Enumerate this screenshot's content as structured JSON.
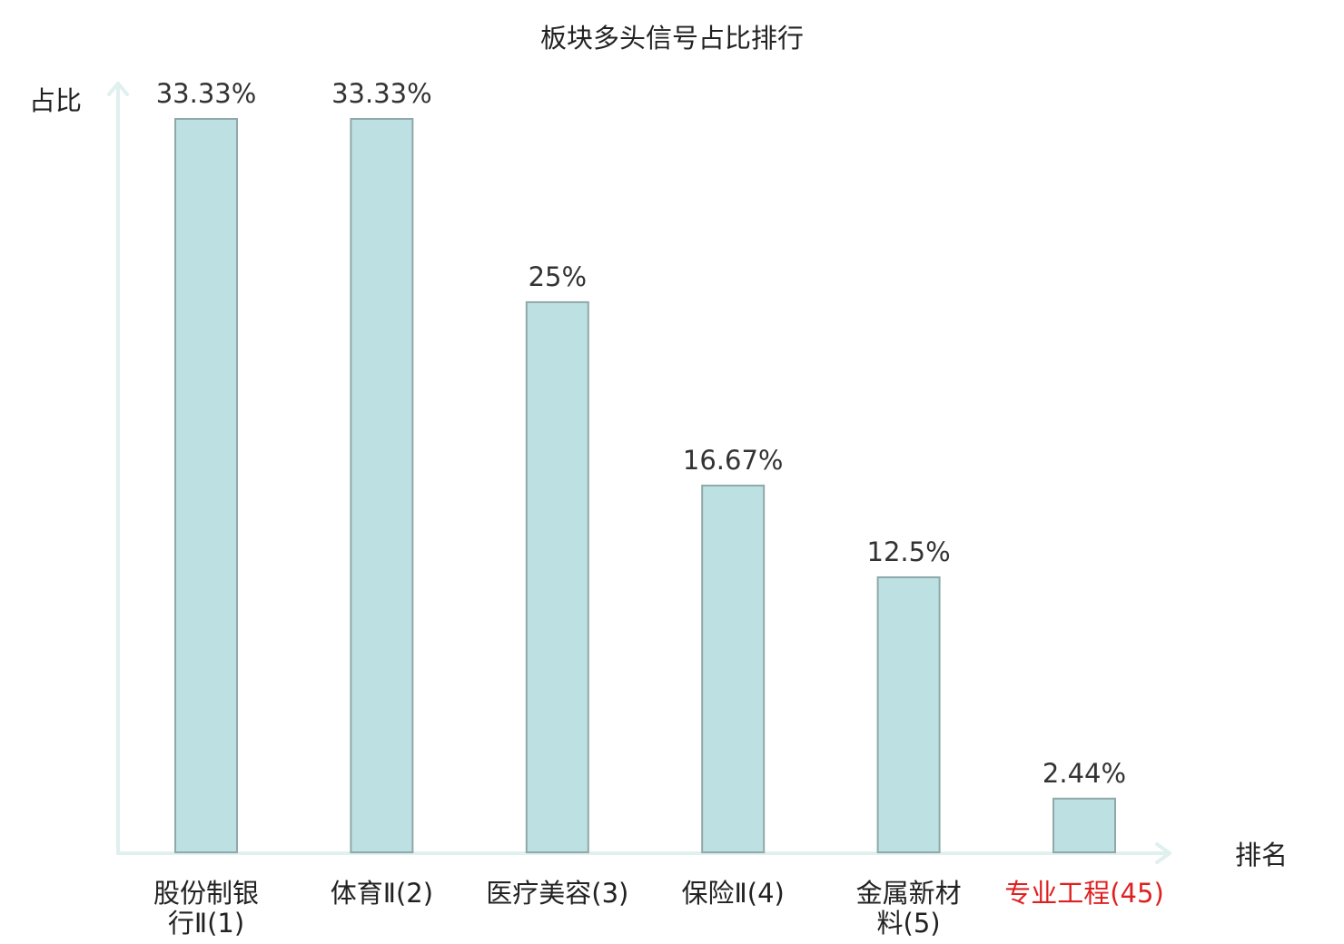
{
  "colors": {
    "bar_fill": "#bde0e3",
    "bar_stroke": "#8fa8aa",
    "axis": "#dff0ef",
    "text": "#222222",
    "highlight": "#e02020"
  },
  "chart_data": {
    "type": "bar",
    "title": "板块多头信号占比排行",
    "xlabel": "排名",
    "ylabel": "占比",
    "ylim": [
      0,
      33.33
    ],
    "unit": "%",
    "grid": false,
    "categories": [
      {
        "lines": [
          "股份制银",
          "行Ⅱ(1)"
        ],
        "highlight": false
      },
      {
        "lines": [
          "体育Ⅱ(2)"
        ],
        "highlight": false
      },
      {
        "lines": [
          "医疗美容(3)"
        ],
        "highlight": false
      },
      {
        "lines": [
          "保险Ⅱ(4)"
        ],
        "highlight": false
      },
      {
        "lines": [
          "金属新材",
          "料(5)"
        ],
        "highlight": false
      },
      {
        "lines": [
          "专业工程(45)"
        ],
        "highlight": true
      }
    ],
    "values": [
      33.33,
      33.33,
      25,
      16.67,
      12.5,
      2.44
    ],
    "value_labels": [
      "33.33%",
      "33.33%",
      "25%",
      "16.67%",
      "12.5%",
      "2.44%"
    ]
  }
}
